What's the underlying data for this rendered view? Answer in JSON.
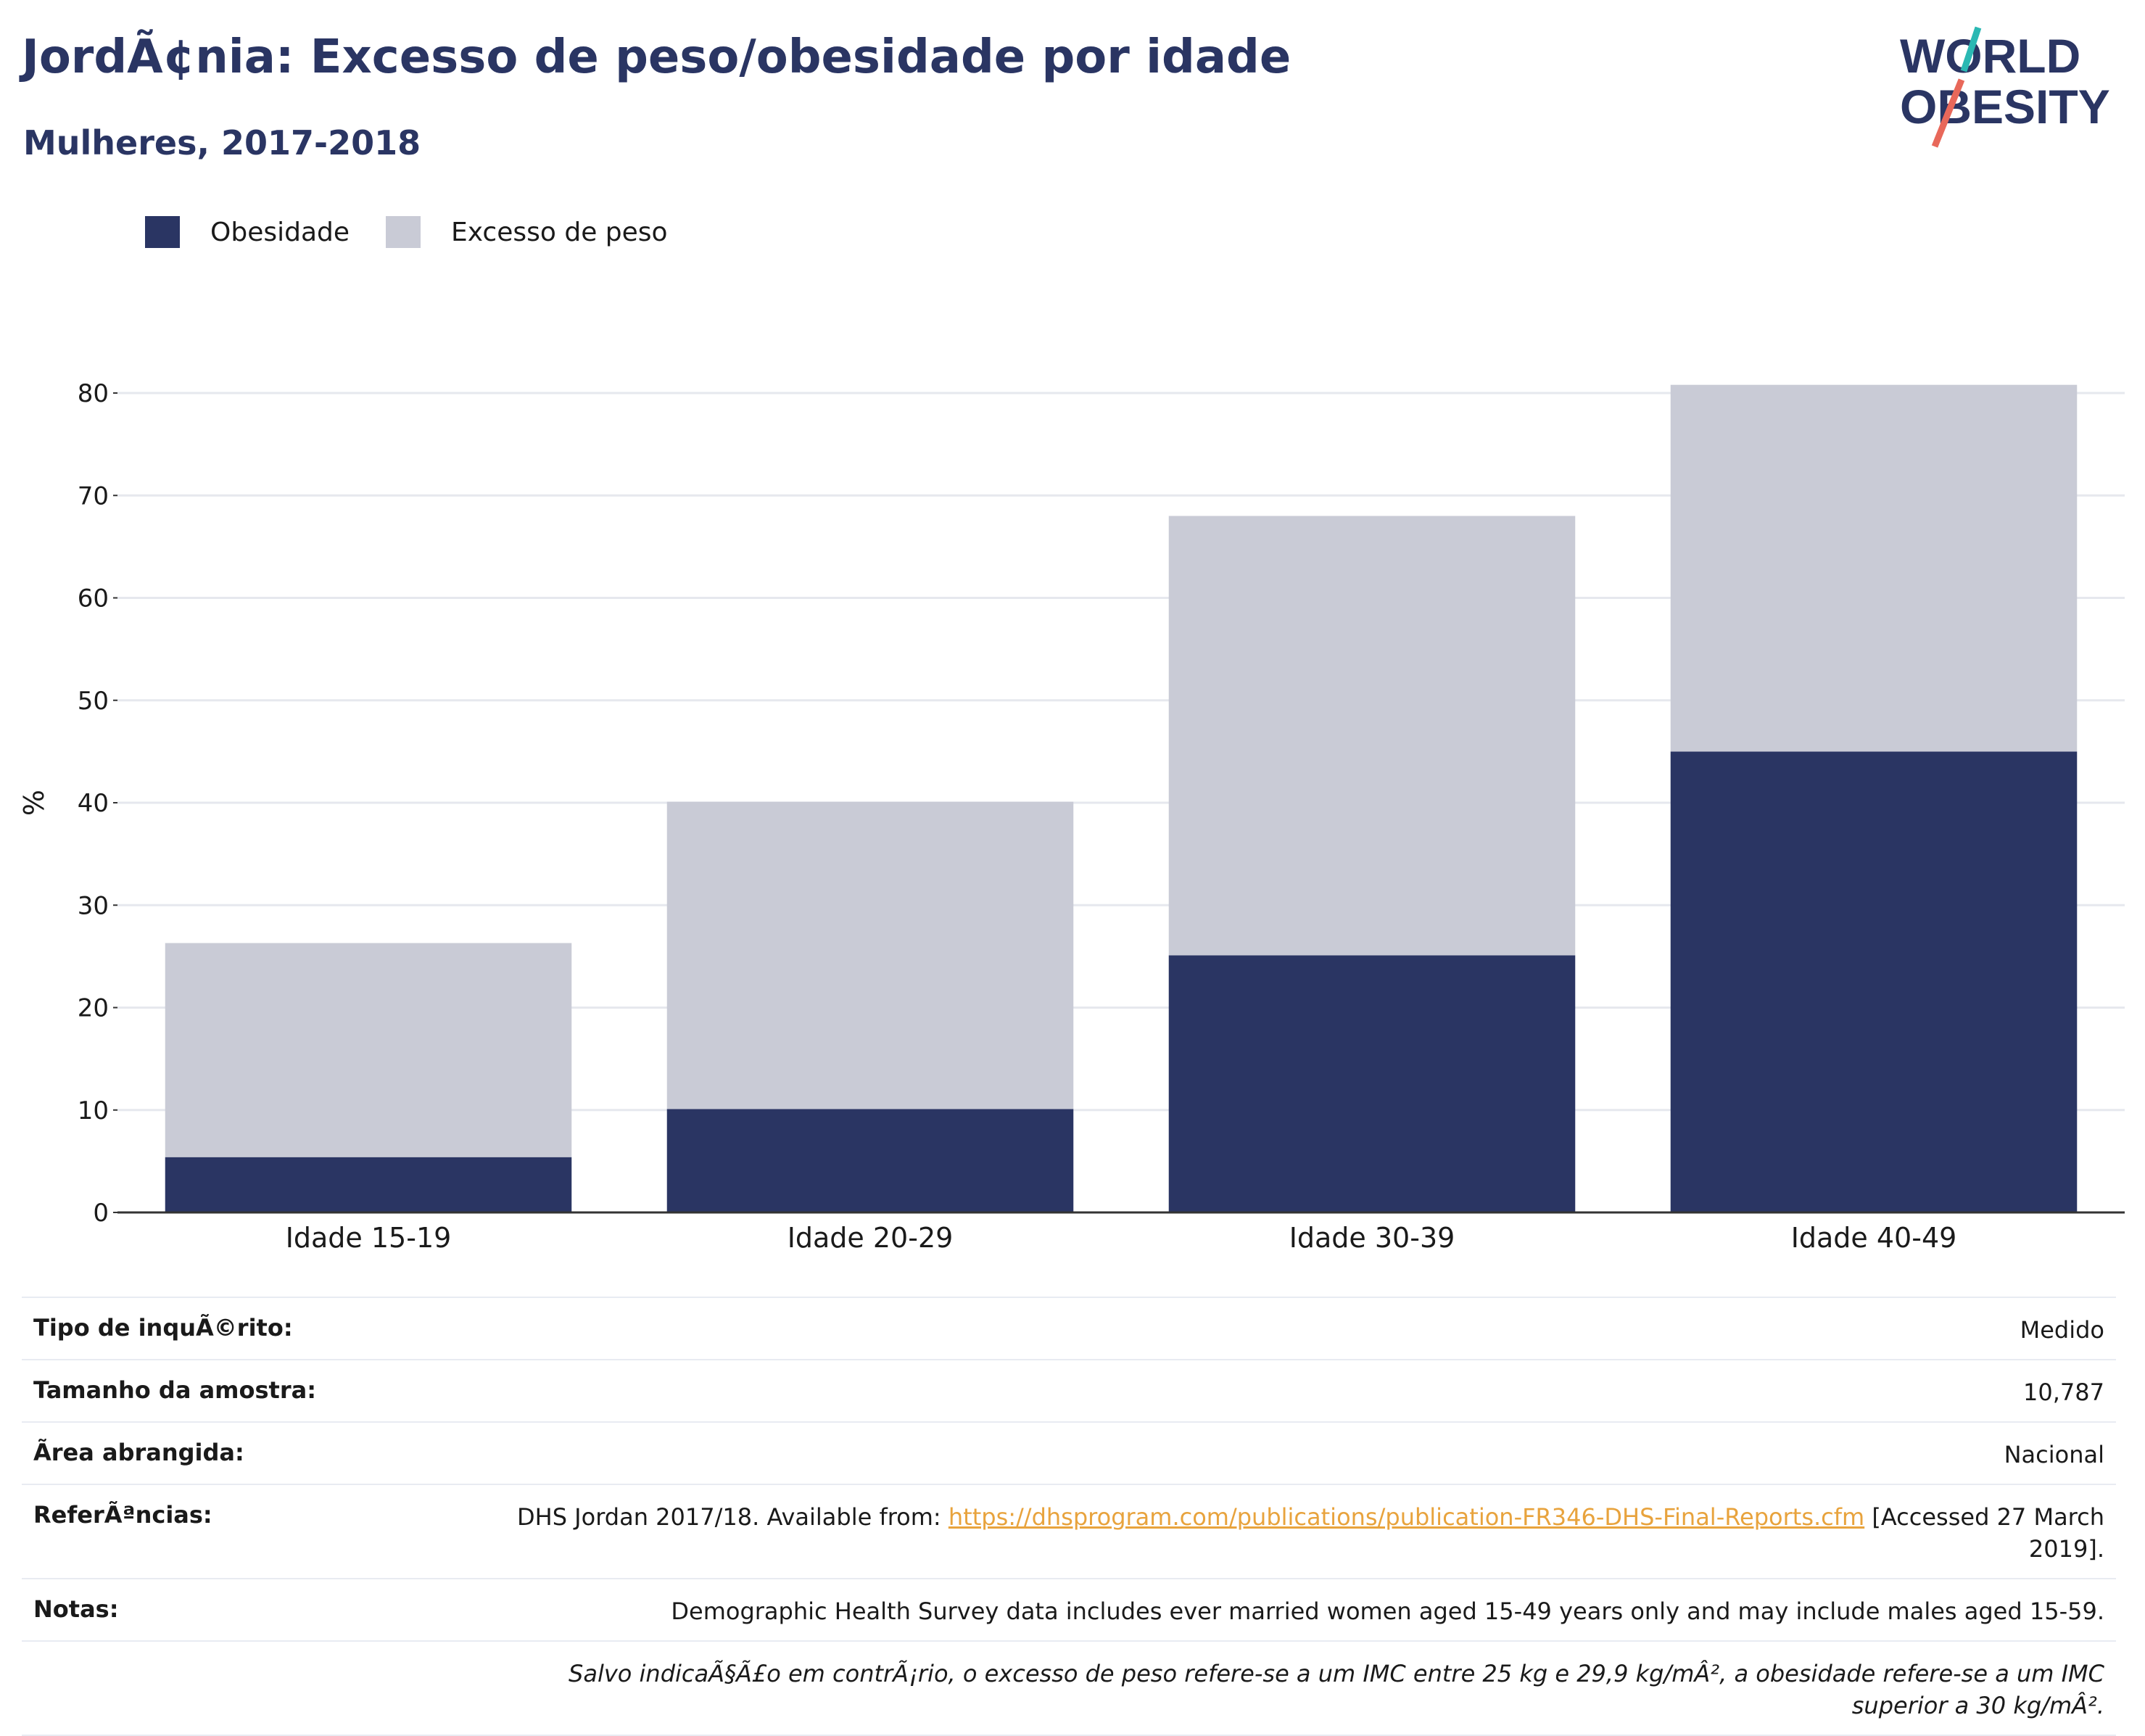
{
  "header": {
    "title": "JordÃ¢nia: Excesso de peso/obesidade por idade",
    "subtitle": "Mulheres, 2017-2018"
  },
  "logo": {
    "line1": "WORLD",
    "line2": "OBESITY"
  },
  "colors": {
    "obesity": "#2a3563",
    "overweight": "#c9cbd6",
    "axis": "#333333",
    "grid": "#e6e8ee",
    "accent_teal": "#2bb8b3",
    "accent_coral": "#e8685a"
  },
  "legend": {
    "obesity": "Obesidade",
    "overweight": "Excesso de peso"
  },
  "chart_data": {
    "type": "bar",
    "stacked": true,
    "categories": [
      "Idade 15-19",
      "Idade 20-29",
      "Idade 30-39",
      "Idade 40-49"
    ],
    "series": [
      {
        "name": "Obesidade",
        "values": [
          5.4,
          10.1,
          25.1,
          45.0
        ]
      },
      {
        "name": "Excesso de peso",
        "values": [
          20.9,
          30.0,
          42.9,
          35.8
        ]
      }
    ],
    "ylabel": "%",
    "ylim": [
      0,
      80
    ],
    "yticks": [
      0,
      10,
      20,
      30,
      40,
      50,
      60,
      70,
      80
    ],
    "grid": true,
    "legend_position": "top-left"
  },
  "info": {
    "survey_type": {
      "label": "Tipo de inquÃ©rito:",
      "value": "Medido"
    },
    "sample_size": {
      "label": "Tamanho da amostra:",
      "value": "10,787"
    },
    "area": {
      "label": "Ã\u001frea abrangida:",
      "value": "Nacional"
    },
    "references": {
      "label": "ReferÃªncias:",
      "prefix": "DHS Jordan 2017/18. Available from: ",
      "link": "https://dhsprogram.com/publications/publication-FR346-DHS-Final-Reports.cfm",
      "suffix": " [Accessed 27 March 2019]."
    },
    "notes": {
      "label": "Notas:",
      "value": "Demographic Health Survey data includes ever married women aged 15-49 years only and may include males aged 15-59."
    },
    "footnote": "Salvo indicaÃ§Ã£o em contrÃ¡rio, o excesso de peso refere-se a um IMC entre 25 kg e 29,9 kg/mÂ², a obesidade refere-se a um IMC superior a 30 kg/mÂ²."
  }
}
